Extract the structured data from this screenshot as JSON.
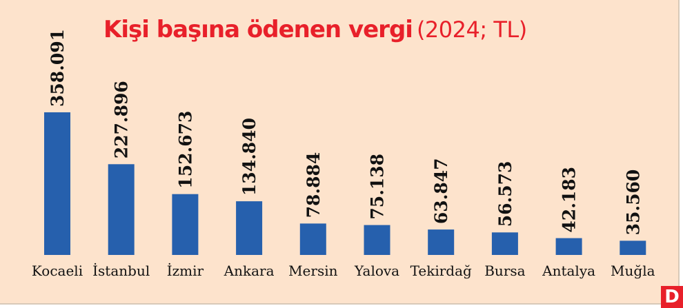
{
  "title": {
    "main": "Kişi başına ödenen vergi",
    "sub": "(2024; TL)"
  },
  "colors": {
    "background": "#fde3cc",
    "bar": "#2660ad",
    "title": "#e8202a"
  },
  "chart_data": {
    "type": "bar",
    "title": "Kişi başına ödenen vergi (2024; TL)",
    "categories": [
      "Kocaeli",
      "İstanbul",
      "İzmir",
      "Ankara",
      "Mersin",
      "Yalova",
      "Tekirdağ",
      "Bursa",
      "Antalya",
      "Muğla"
    ],
    "values": [
      358091,
      227896,
      152673,
      134840,
      78884,
      75138,
      63847,
      56573,
      42183,
      35560
    ],
    "value_labels": [
      "358.091",
      "227.896",
      "152.673",
      "134.840",
      "78.884",
      "75.138",
      "63.847",
      "56.573",
      "42.183",
      "35.560"
    ],
    "xlabel": "",
    "ylabel": "",
    "ylim": [
      0,
      358091
    ],
    "grid": false,
    "legend": "none"
  },
  "logo": {
    "letter": "D"
  }
}
